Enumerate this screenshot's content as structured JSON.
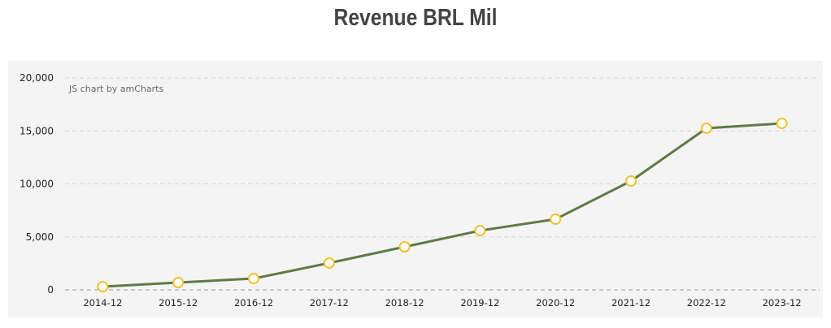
{
  "chart_data": {
    "type": "line",
    "title": "Revenue BRL Mil",
    "credit": "JS chart by amCharts",
    "categories": [
      "2014-12",
      "2015-12",
      "2016-12",
      "2017-12",
      "2018-12",
      "2019-12",
      "2020-12",
      "2021-12",
      "2022-12",
      "2023-12"
    ],
    "series": [
      {
        "name": "Revenue",
        "values": [
          300,
          690,
          1070,
          2530,
          4060,
          5590,
          6670,
          10270,
          15250,
          15710
        ]
      }
    ],
    "ylim": [
      0,
      20000
    ],
    "yticks": [
      0,
      5000,
      10000,
      15000,
      20000
    ],
    "ytick_labels": [
      "0",
      "5,000",
      "10,000",
      "15,000",
      "20,000"
    ],
    "grid": true,
    "colors": {
      "line": "#5f7a47",
      "marker_stroke": "#f2c12e",
      "marker_fill": "#ffffff"
    }
  }
}
